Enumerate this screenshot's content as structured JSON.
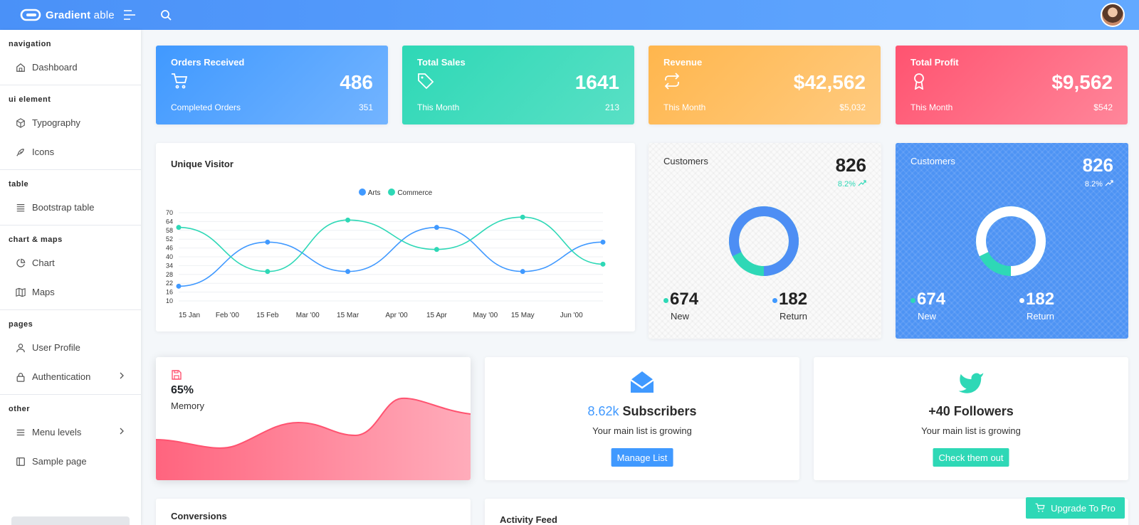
{
  "header": {
    "brand_bold": "Gradient",
    "brand_light": " able"
  },
  "sidebar": {
    "groups": [
      {
        "caption": "navigation",
        "items": [
          {
            "label": "Dashboard",
            "icon": "home-icon"
          }
        ]
      },
      {
        "caption": "ui element",
        "items": [
          {
            "label": "Typography",
            "icon": "box-icon"
          },
          {
            "label": "Icons",
            "icon": "feather-icon"
          }
        ]
      },
      {
        "caption": "table",
        "items": [
          {
            "label": "Bootstrap table",
            "icon": "list-icon"
          }
        ]
      },
      {
        "caption": "chart & maps",
        "items": [
          {
            "label": "Chart",
            "icon": "pie-chart-icon"
          },
          {
            "label": "Maps",
            "icon": "map-icon"
          }
        ]
      },
      {
        "caption": "pages",
        "items": [
          {
            "label": "User Profile",
            "icon": "user-icon"
          },
          {
            "label": "Authentication",
            "icon": "lock-icon"
          }
        ]
      },
      {
        "caption": "other",
        "items": [
          {
            "label": "Menu levels",
            "icon": "menu-icon"
          },
          {
            "label": "Sample page",
            "icon": "sidebar-icon"
          }
        ]
      }
    ]
  },
  "stats": [
    {
      "title": "Orders Received",
      "value": "486",
      "sub": "Completed Orders",
      "subval": "351",
      "icon": "shopping-cart-icon",
      "color": "#4099ff"
    },
    {
      "title": "Total Sales",
      "value": "1641",
      "sub": "This Month",
      "subval": "213",
      "icon": "tag-icon",
      "color": "#2ed8b6"
    },
    {
      "title": "Revenue",
      "value": "$42,562",
      "sub": "This Month",
      "subval": "$5,032",
      "icon": "repeat-icon",
      "color": "#ffb64d"
    },
    {
      "title": "Total Profit",
      "value": "$9,562",
      "sub": "This Month",
      "subval": "$542",
      "icon": "award-icon",
      "color": "#ff5370"
    }
  ],
  "visitor": {
    "title": "Unique Visitor",
    "chart_data": {
      "type": "line",
      "title": "Unique Visitor",
      "y_ticks": [
        10,
        16,
        22,
        28,
        34,
        40,
        46,
        52,
        58,
        64,
        70
      ],
      "ylim": [
        10,
        70
      ],
      "x_labels": [
        "15 Jan",
        "Feb '00",
        "15 Feb",
        "Mar '00",
        "15 Mar",
        "Apr '00",
        "15 Apr",
        "May '00",
        "15 May",
        "Jun '00"
      ],
      "x_days": [
        0,
        17,
        31,
        45,
        59,
        76,
        90,
        107,
        120,
        137
      ],
      "point_days": [
        0,
        31,
        59,
        90,
        120,
        148
      ],
      "legend_position": "top-center",
      "series": [
        {
          "name": "Arts",
          "color": "#4099ff",
          "values": [
            20,
            50,
            30,
            60,
            30,
            50
          ]
        },
        {
          "name": "Commerce",
          "color": "#2ed8b6",
          "values": [
            60,
            30,
            65,
            45,
            67,
            35
          ]
        }
      ]
    }
  },
  "customers_light": {
    "label": "Customers",
    "value": "826",
    "trend": "8.2%",
    "new_value": "674",
    "new_label": "New",
    "return_value": "182",
    "return_label": "Return",
    "percent": 82
  },
  "customers_blue": {
    "label": "Customers",
    "value": "826",
    "trend": "8.2%",
    "new_value": "674",
    "new_label": "New",
    "return_value": "182",
    "return_label": "Return",
    "percent": 82
  },
  "memory": {
    "value": "65%",
    "label": "Memory",
    "icon": "save-icon",
    "color": "#ff5370"
  },
  "subscribers": {
    "accent": "8.62k",
    "title": " Subscribers",
    "sub": "Your main list is growing",
    "button": "Manage List",
    "icon": "mail-icon",
    "color": "#4099ff"
  },
  "followers": {
    "title": "+40 Followers",
    "sub": "Your main list is growing",
    "button": "Check them out",
    "icon": "twitter-icon",
    "color": "#2ed8b6"
  },
  "conversions": {
    "title": "Conversions"
  },
  "activity": {
    "title": "Activity Feed"
  },
  "upgrade": {
    "label": "Upgrade To Pro",
    "icon": "shopping-cart-icon"
  }
}
